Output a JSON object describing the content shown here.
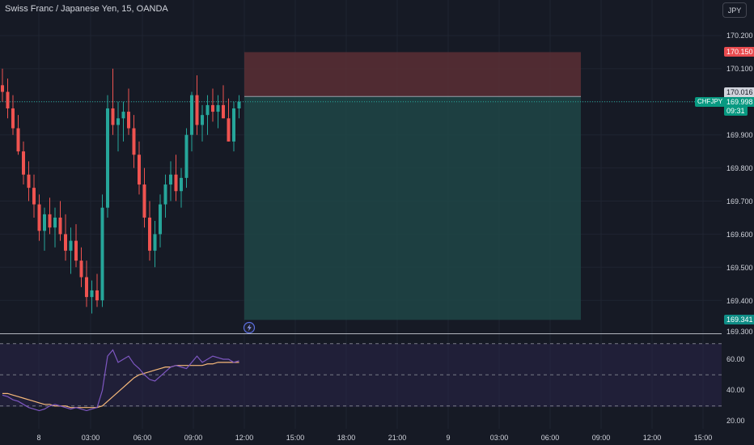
{
  "header": {
    "symbol_description": "Swiss Franc / Japanese Yen, 15, OANDA",
    "currency_button": "JPY"
  },
  "price_axis": {
    "ticks": [
      "170.200",
      "170.100",
      "169.900",
      "169.800",
      "169.700",
      "169.600",
      "169.500",
      "169.400",
      "169.300"
    ],
    "stop_loss_label": "170.150",
    "entry_label": "170.016",
    "current_price_label": "169.998",
    "countdown_label": "09:31",
    "take_profit_label": "169.341",
    "symbol_tag": "CHFJPY"
  },
  "oscillator_axis": {
    "ticks": [
      "60.00",
      "40.00",
      "20.00"
    ]
  },
  "time_axis": {
    "ticks": [
      "8",
      "03:00",
      "06:00",
      "09:00",
      "12:00",
      "15:00",
      "18:00",
      "21:00",
      "9",
      "03:00",
      "06:00",
      "09:00",
      "12:00",
      "15:00"
    ]
  },
  "colors": {
    "background": "#161a25",
    "bull": "#26a69a",
    "bear": "#ef5350",
    "stop_zone": "#5b2f35",
    "target_zone": "#1f4646",
    "rsi_line": "#7e57c2",
    "rsi_ma": "#f7b97a"
  },
  "chart_data": {
    "type": "candlestick",
    "symbol": "CHFJPY",
    "interval": "15",
    "y_range": [
      169.3,
      170.25
    ],
    "candles": [
      [
        170.05,
        170.1,
        170.0,
        170.03
      ],
      [
        170.03,
        170.07,
        169.95,
        169.98
      ],
      [
        169.98,
        170.02,
        169.9,
        169.92
      ],
      [
        169.92,
        169.96,
        169.84,
        169.85
      ],
      [
        169.85,
        169.88,
        169.75,
        169.78
      ],
      [
        169.78,
        169.82,
        169.7,
        169.74
      ],
      [
        169.74,
        169.78,
        169.65,
        169.69
      ],
      [
        169.69,
        169.72,
        169.58,
        169.61
      ],
      [
        169.61,
        169.68,
        169.55,
        169.66
      ],
      [
        169.66,
        169.71,
        169.6,
        169.62
      ],
      [
        169.62,
        169.68,
        169.56,
        169.65
      ],
      [
        169.65,
        169.7,
        169.58,
        169.6
      ],
      [
        169.6,
        169.66,
        169.52,
        169.55
      ],
      [
        169.55,
        169.62,
        169.48,
        169.58
      ],
      [
        169.58,
        169.63,
        169.5,
        169.52
      ],
      [
        169.52,
        169.56,
        169.44,
        169.47
      ],
      [
        169.47,
        169.52,
        169.38,
        169.41
      ],
      [
        169.41,
        169.46,
        169.36,
        169.43
      ],
      [
        169.43,
        169.48,
        169.38,
        169.4
      ],
      [
        169.4,
        169.72,
        169.38,
        169.68
      ],
      [
        169.68,
        170.02,
        169.65,
        169.98
      ],
      [
        169.98,
        170.1,
        169.9,
        169.93
      ],
      [
        169.93,
        170.0,
        169.85,
        169.95
      ],
      [
        169.95,
        170.0,
        169.88,
        169.97
      ],
      [
        169.97,
        170.04,
        169.9,
        169.92
      ],
      [
        169.92,
        169.96,
        169.8,
        169.84
      ],
      [
        169.84,
        169.88,
        169.72,
        169.75
      ],
      [
        169.75,
        169.8,
        169.62,
        169.65
      ],
      [
        169.65,
        169.7,
        169.52,
        169.55
      ],
      [
        169.55,
        169.64,
        169.5,
        169.6
      ],
      [
        169.6,
        169.72,
        169.56,
        169.69
      ],
      [
        169.69,
        169.78,
        169.65,
        169.75
      ],
      [
        169.75,
        169.82,
        169.7,
        169.78
      ],
      [
        169.78,
        169.84,
        169.7,
        169.73
      ],
      [
        169.73,
        169.8,
        169.68,
        169.77
      ],
      [
        169.77,
        169.92,
        169.74,
        169.9
      ],
      [
        169.9,
        170.03,
        169.85,
        170.02
      ],
      [
        170.02,
        170.08,
        169.9,
        169.93
      ],
      [
        169.93,
        169.99,
        169.88,
        169.96
      ],
      [
        169.96,
        170.02,
        169.9,
        169.99
      ],
      [
        169.99,
        170.04,
        169.94,
        169.97
      ],
      [
        169.97,
        170.02,
        169.92,
        169.99
      ],
      [
        169.99,
        170.05,
        169.95,
        169.95
      ],
      [
        169.95,
        170.01,
        169.88,
        169.88
      ],
      [
        169.88,
        170.0,
        169.85,
        169.98
      ],
      [
        169.98,
        170.02,
        169.95,
        170.0
      ]
    ],
    "position": {
      "side": "short",
      "stop_loss": 170.15,
      "entry": 170.016,
      "take_profit": 169.341
    },
    "oscillator": {
      "y_range": [
        20,
        72
      ],
      "levels": [
        70,
        50,
        30
      ],
      "line_values": [
        37,
        36,
        34,
        33,
        31,
        29,
        28,
        27,
        28,
        30,
        31,
        30,
        29,
        28,
        29,
        28,
        27,
        28,
        29,
        40,
        62,
        66,
        58,
        60,
        62,
        57,
        54,
        50,
        47,
        46,
        49,
        52,
        55,
        56,
        55,
        54,
        58,
        62,
        58,
        60,
        62,
        61,
        60,
        60,
        58,
        59
      ],
      "signal_values": [
        38,
        38,
        37,
        36,
        35,
        34,
        33,
        32,
        31,
        31,
        30,
        30,
        30,
        29,
        29,
        29,
        29,
        29,
        29,
        30,
        33,
        36,
        39,
        42,
        45,
        48,
        50,
        51,
        52,
        53,
        54,
        55,
        55,
        56,
        56,
        56,
        56,
        56,
        56,
        57,
        57,
        58,
        58,
        58,
        58,
        58
      ]
    }
  }
}
